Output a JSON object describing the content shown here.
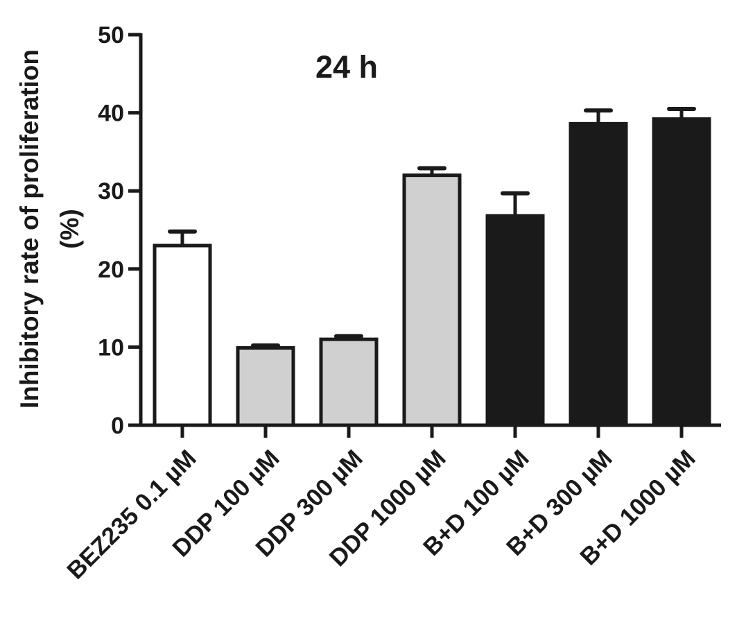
{
  "chart_data": {
    "type": "bar",
    "title": "24 h",
    "ylabel_line1": "Inhibitory rate of proliferation",
    "ylabel_line2": "(%)",
    "xlabel": "",
    "ylim": [
      0,
      50
    ],
    "yticks": [
      0,
      10,
      20,
      30,
      40,
      50
    ],
    "grid": false,
    "categories": [
      "BEZ235 0.1  µM",
      "DDP 100 µM",
      "DDP 300 µM",
      "DDP 1000 µM",
      "B+D 100 µM",
      "B+D 300 µM",
      "B+D 1000 µM"
    ],
    "values": [
      23.0,
      9.9,
      11.0,
      32.0,
      26.8,
      38.6,
      39.2
    ],
    "errors": [
      1.8,
      0.3,
      0.4,
      0.9,
      2.9,
      1.7,
      1.3
    ],
    "fill_colors": [
      "#ffffff",
      "#d0d0d0",
      "#d0d0d0",
      "#d0d0d0",
      "#1a1a1a",
      "#1a1a1a",
      "#1a1a1a"
    ],
    "stroke_color": "#1a1a1a"
  }
}
